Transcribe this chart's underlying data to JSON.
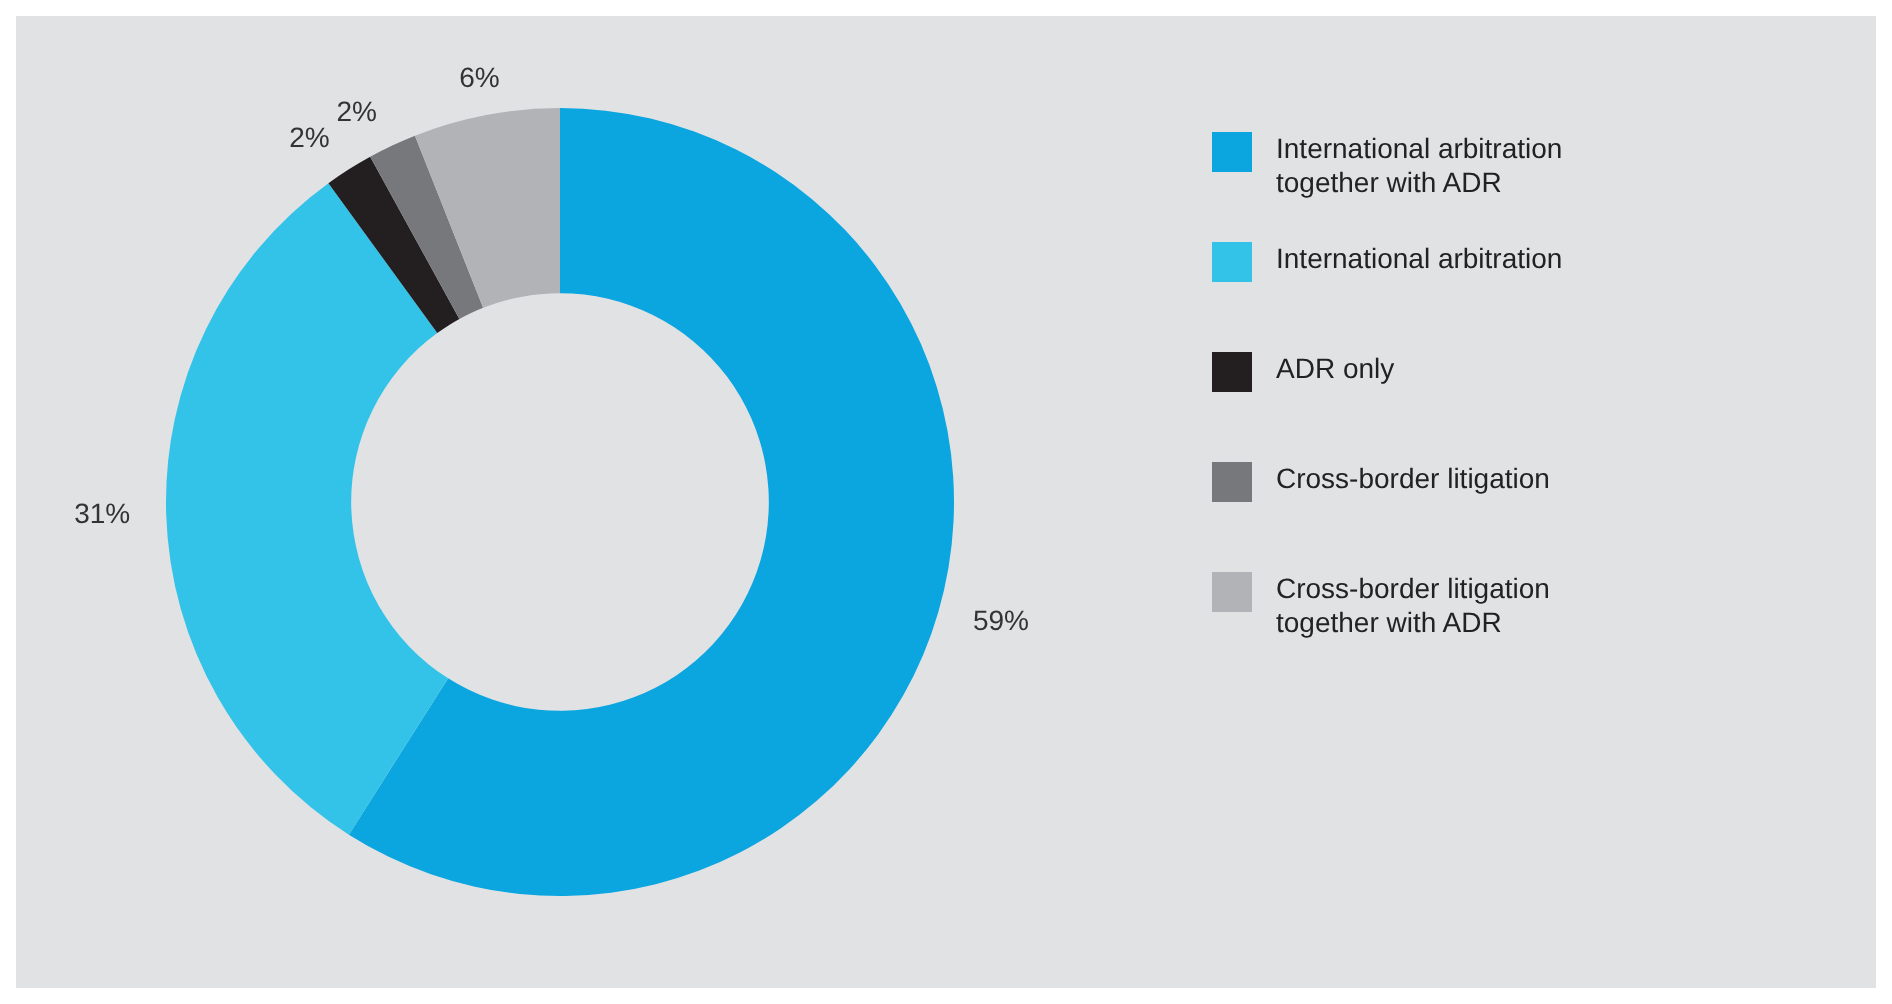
{
  "chart_data": {
    "type": "donut",
    "categories": [
      "International arbitration together with ADR",
      "International arbitration",
      "ADR only",
      "Cross-border litigation",
      "Cross-border litigation together with ADR"
    ],
    "values": [
      59,
      31,
      2,
      2,
      6
    ],
    "value_labels": [
      "59%",
      "31%",
      "2%",
      "2%",
      "6%"
    ],
    "colors": [
      "#0ba5e0",
      "#33c3e8",
      "#231f20",
      "#77787b",
      "#b1b3b6"
    ],
    "legend": "right"
  }
}
